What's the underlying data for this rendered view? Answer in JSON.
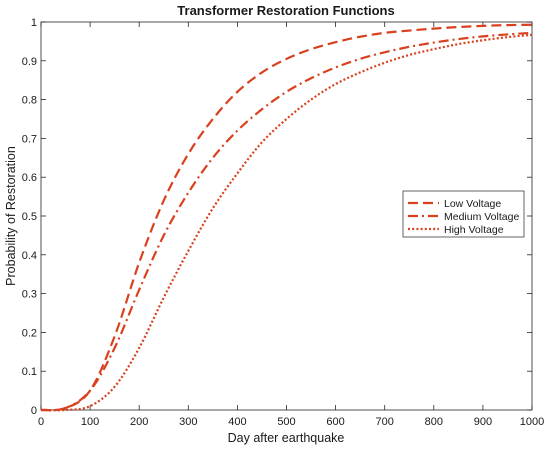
{
  "chart_data": {
    "type": "line",
    "title": "Transformer Restoration Functions",
    "xlabel": "Day after earthquake",
    "ylabel": "Probability of Restoration",
    "xlim": [
      0,
      1000
    ],
    "ylim": [
      0,
      1
    ],
    "xticks": [
      "0",
      "100",
      "200",
      "300",
      "400",
      "500",
      "600",
      "700",
      "800",
      "900",
      "1000"
    ],
    "yticks": [
      "0",
      "0.1",
      "0.2",
      "0.3",
      "0.4",
      "0.5",
      "0.6",
      "0.7",
      "0.8",
      "0.9",
      "1"
    ],
    "grid": false,
    "legend_position": "center-right",
    "x": [
      0,
      50,
      100,
      150,
      200,
      250,
      300,
      350,
      400,
      450,
      500,
      550,
      600,
      650,
      700,
      750,
      800,
      850,
      900,
      950,
      1000
    ],
    "series": [
      {
        "name": "Low Voltage",
        "style": "dashed",
        "color": "#d9411e",
        "values": [
          0,
          0.005,
          0.05,
          0.19,
          0.38,
          0.54,
          0.66,
          0.75,
          0.82,
          0.87,
          0.905,
          0.93,
          0.948,
          0.962,
          0.972,
          0.978,
          0.983,
          0.987,
          0.99,
          0.992,
          0.993
        ]
      },
      {
        "name": "Medium Voltage",
        "style": "dash-dot",
        "color": "#d9411e",
        "values": [
          0,
          0.005,
          0.05,
          0.16,
          0.31,
          0.45,
          0.56,
          0.65,
          0.72,
          0.775,
          0.82,
          0.855,
          0.883,
          0.905,
          0.922,
          0.936,
          0.947,
          0.956,
          0.963,
          0.968,
          0.972
        ]
      },
      {
        "name": "High Voltage",
        "style": "dotted",
        "color": "#d9411e",
        "values": [
          0,
          0,
          0.01,
          0.06,
          0.16,
          0.29,
          0.41,
          0.52,
          0.61,
          0.69,
          0.75,
          0.8,
          0.84,
          0.87,
          0.895,
          0.915,
          0.93,
          0.943,
          0.953,
          0.961,
          0.967
        ]
      }
    ]
  }
}
